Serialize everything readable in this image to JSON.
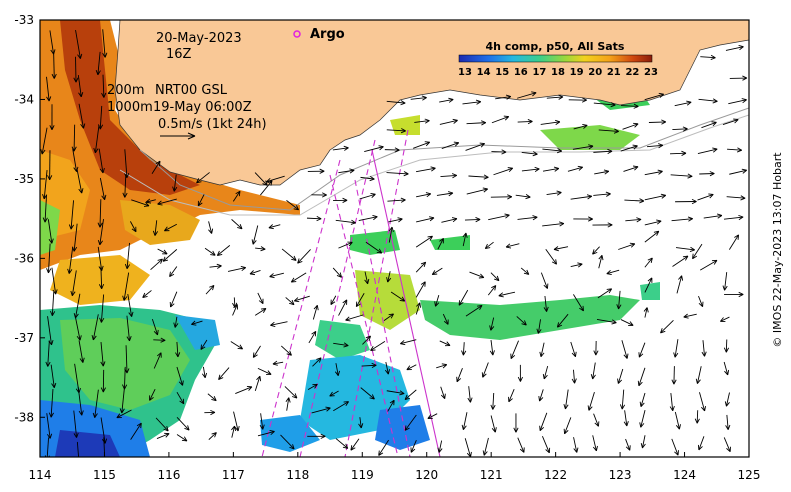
{
  "map": {
    "date": "20-May-2023",
    "hour": "16Z",
    "argo_label": "Argo",
    "current_depth_1": "200m",
    "current_source": "NRT00 GSL",
    "current_depth_2": "1000m",
    "current_time": "19-May 06:00Z",
    "vector_scale": "0.5m/s (1kt 24h)",
    "credit": "© IMOS 22-May-2023 13:07 Hobart",
    "land_color": "#f9c896",
    "argo_color": "#e020e0",
    "track_color": "#cc33cc"
  },
  "colorbar": {
    "title": "4h comp, p50, All Sats",
    "ticks": [
      "13",
      "14",
      "15",
      "16",
      "17",
      "18",
      "19",
      "20",
      "21",
      "22",
      "23"
    ],
    "colors": [
      "#1d2ab0",
      "#1f6ee8",
      "#25b8e0",
      "#3ccf8a",
      "#7ed84a",
      "#c6de2e",
      "#f2d21e",
      "#f4a31a",
      "#e86c14",
      "#c9400f",
      "#8a1d0a"
    ]
  },
  "axes": {
    "lon_range": [
      114,
      125
    ],
    "lat_range": [
      -38.5,
      -33
    ],
    "x_ticks": [
      "114",
      "115",
      "116",
      "117",
      "118",
      "119",
      "120",
      "121",
      "122",
      "123",
      "124",
      "125"
    ],
    "y_ticks": [
      "-33",
      "-34",
      "-35",
      "-36",
      "-37",
      "-38"
    ]
  }
}
